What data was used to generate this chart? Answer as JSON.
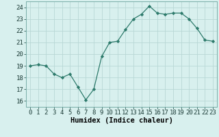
{
  "x": [
    0,
    1,
    2,
    3,
    4,
    5,
    6,
    7,
    8,
    9,
    10,
    11,
    12,
    13,
    14,
    15,
    16,
    17,
    18,
    19,
    20,
    21,
    22,
    23
  ],
  "y": [
    19,
    19.1,
    19,
    18.3,
    18,
    18.3,
    17.2,
    16.1,
    17.0,
    19.8,
    21.0,
    21.1,
    22.1,
    23.0,
    23.4,
    24.1,
    23.5,
    23.4,
    23.5,
    23.5,
    23.0,
    22.2,
    21.2,
    21.1
  ],
  "xlabel": "Humidex (Indice chaleur)",
  "xlim": [
    -0.5,
    23.5
  ],
  "ylim": [
    15.5,
    24.5
  ],
  "yticks": [
    16,
    17,
    18,
    19,
    20,
    21,
    22,
    23,
    24
  ],
  "xtick_labels": [
    "0",
    "1",
    "2",
    "3",
    "4",
    "5",
    "6",
    "7",
    "8",
    "9",
    "10",
    "11",
    "12",
    "13",
    "14",
    "15",
    "16",
    "17",
    "18",
    "19",
    "20",
    "21",
    "22",
    "23"
  ],
  "line_color": "#2d7a6b",
  "marker": "D",
  "marker_size": 2.2,
  "bg_color": "#d8f0ee",
  "grid_color": "#b8d8d5",
  "xlabel_fontsize": 7.5,
  "tick_fontsize": 6.5
}
